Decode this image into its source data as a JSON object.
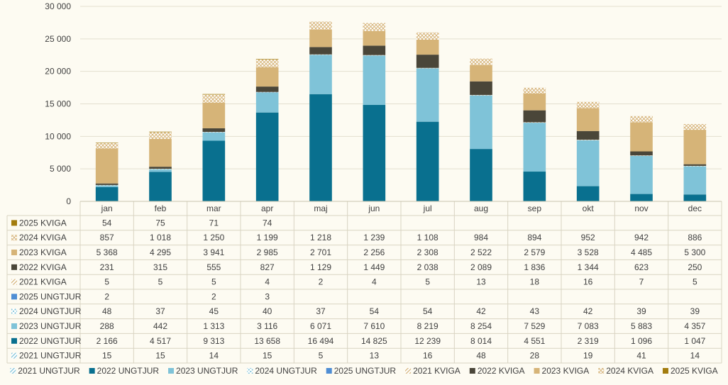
{
  "chart_data": {
    "type": "bar",
    "stacked": true,
    "categories": [
      "jan",
      "feb",
      "mar",
      "apr",
      "maj",
      "jun",
      "jul",
      "aug",
      "sep",
      "okt",
      "nov",
      "dec"
    ],
    "y_ticks": [
      "30 000",
      "25 000",
      "20 000",
      "15 000",
      "10 000",
      "5 000",
      "0"
    ],
    "ylim": [
      0,
      30000
    ],
    "grid": true,
    "legend_position": "bottom",
    "series": [
      {
        "name": "2021 UNGTJUR",
        "color": "#7fc3d8",
        "pattern": "hatch",
        "values": [
          15,
          15,
          14,
          15,
          5,
          13,
          16,
          48,
          28,
          19,
          41,
          14
        ],
        "labels": [
          "15",
          "15",
          "14",
          "15",
          "5",
          "13",
          "16",
          "48",
          "28",
          "19",
          "41",
          "14"
        ]
      },
      {
        "name": "2022 UNGTJUR",
        "color": "#09708f",
        "pattern": "solid",
        "values": [
          2166,
          4517,
          9313,
          13658,
          16494,
          14825,
          12239,
          8014,
          4551,
          2319,
          1096,
          1047
        ],
        "labels": [
          "2 166",
          "4 517",
          "9 313",
          "13 658",
          "16 494",
          "14 825",
          "12 239",
          "8 014",
          "4 551",
          "2 319",
          "1 096",
          "1 047"
        ]
      },
      {
        "name": "2023 UNGTJUR",
        "color": "#7fc3d8",
        "pattern": "solid",
        "values": [
          288,
          442,
          1313,
          3116,
          6071,
          7610,
          8219,
          8254,
          7529,
          7083,
          5883,
          4357
        ],
        "labels": [
          "288",
          "442",
          "1 313",
          "3 116",
          "6 071",
          "7 610",
          "8 219",
          "8 254",
          "7 529",
          "7 083",
          "5 883",
          "4 357"
        ]
      },
      {
        "name": "2024 UNGTJUR",
        "color": "#7fc3d8",
        "pattern": "dots",
        "values": [
          48,
          37,
          45,
          40,
          37,
          54,
          54,
          42,
          43,
          42,
          39,
          39
        ],
        "labels": [
          "48",
          "37",
          "45",
          "40",
          "37",
          "54",
          "54",
          "42",
          "43",
          "42",
          "39",
          "39"
        ]
      },
      {
        "name": "2025 UNGTJUR",
        "color": "#4f8ed4",
        "pattern": "solid",
        "values": [
          2,
          0,
          2,
          3,
          0,
          0,
          0,
          0,
          0,
          0,
          0,
          0
        ],
        "labels": [
          "2",
          "",
          "2",
          "3",
          "",
          "",
          "",
          "",
          "",
          "",
          "",
          ""
        ]
      },
      {
        "name": "2021 KVIGA",
        "color": "#d6b478",
        "pattern": "hatch",
        "values": [
          5,
          5,
          5,
          4,
          2,
          4,
          5,
          13,
          18,
          16,
          7,
          5
        ],
        "labels": [
          "5",
          "5",
          "5",
          "4",
          "2",
          "4",
          "5",
          "13",
          "18",
          "16",
          "7",
          "5"
        ]
      },
      {
        "name": "2022 KVIGA",
        "color": "#4a4639",
        "pattern": "solid",
        "values": [
          231,
          315,
          555,
          827,
          1129,
          1449,
          2038,
          2089,
          1836,
          1344,
          623,
          250
        ],
        "labels": [
          "231",
          "315",
          "555",
          "827",
          "1 129",
          "1 449",
          "2 038",
          "2 089",
          "1 836",
          "1 344",
          "623",
          "250"
        ]
      },
      {
        "name": "2023 KVIGA",
        "color": "#d6b478",
        "pattern": "solid",
        "values": [
          5368,
          4295,
          3941,
          2985,
          2701,
          2256,
          2308,
          2522,
          2579,
          3528,
          4485,
          5300
        ],
        "labels": [
          "5 368",
          "4 295",
          "3 941",
          "2 985",
          "2 701",
          "2 256",
          "2 308",
          "2 522",
          "2 579",
          "3 528",
          "4 485",
          "5 300"
        ]
      },
      {
        "name": "2024 KVIGA",
        "color": "#d6b478",
        "pattern": "cross",
        "values": [
          857,
          1018,
          1250,
          1199,
          1218,
          1239,
          1108,
          984,
          894,
          952,
          942,
          886
        ],
        "labels": [
          "857",
          "1 018",
          "1 250",
          "1 199",
          "1 218",
          "1 239",
          "1 108",
          "984",
          "894",
          "952",
          "942",
          "886"
        ]
      },
      {
        "name": "2025 KVIGA",
        "color": "#a37d0f",
        "pattern": "solid",
        "values": [
          54,
          75,
          71,
          74,
          0,
          0,
          0,
          0,
          0,
          0,
          0,
          0
        ],
        "labels": [
          "54",
          "75",
          "71",
          "74",
          "",
          "",
          "",
          "",
          "",
          "",
          "",
          ""
        ]
      }
    ]
  }
}
